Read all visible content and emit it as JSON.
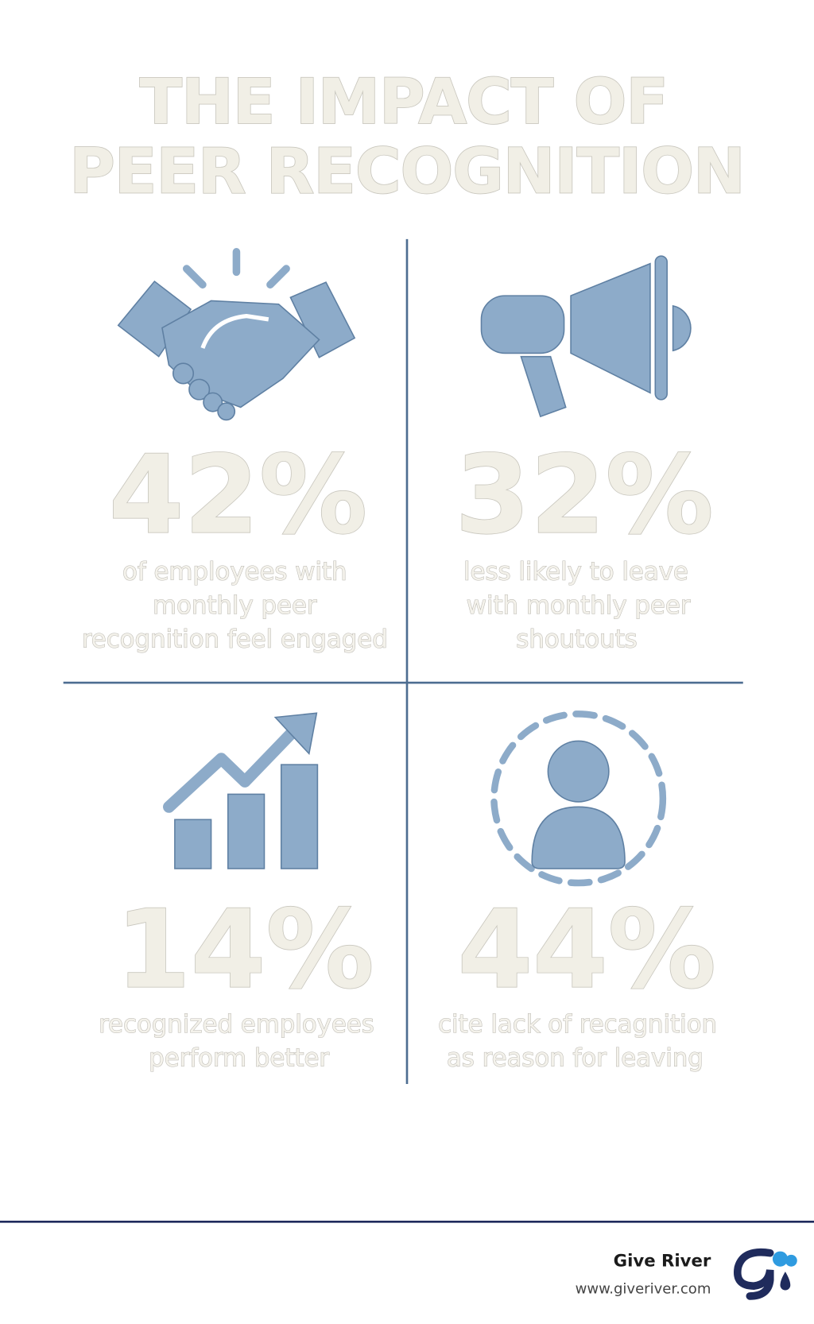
{
  "header": {
    "title_lines": [
      "THE IMPACT OF",
      "PEER RECOGNITION"
    ]
  },
  "stats": [
    {
      "value": "42%",
      "description_lines": [
        "of employees with",
        "monthly peer",
        "recognition feel engaged"
      ]
    },
    {
      "value": "32%",
      "description_lines": [
        "less likely to leave",
        "with monthly peer",
        "shoutouts"
      ]
    },
    {
      "value": "14%",
      "description_lines": [
        "recognized employees",
        "perform better"
      ]
    },
    {
      "value": "44%",
      "description_lines": [
        "cite lack of recagnition",
        "as reason for leaving"
      ]
    }
  ],
  "footer": {
    "brand": "Give River",
    "url": "www.giveriver.com"
  }
}
